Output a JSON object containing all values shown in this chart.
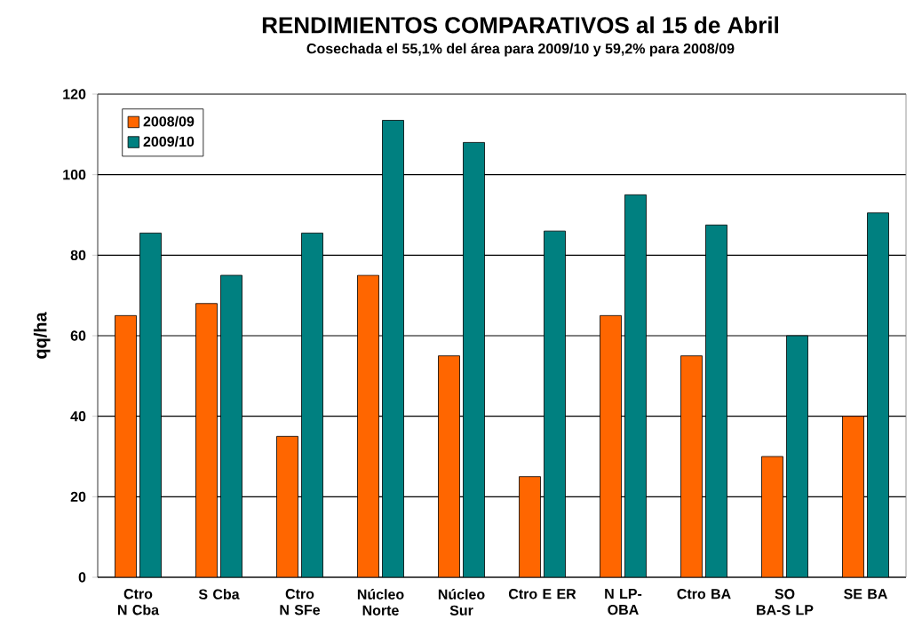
{
  "chart_data": {
    "type": "bar",
    "title": "RENDIMIENTOS COMPARATIVOS al 15 de Abril",
    "subtitle": "Cosechada el 55,1% del área para 2009/10 y 59,2% para 2008/09",
    "ylabel": "qq/ha",
    "categories": [
      "Ctro N Cba",
      "S Cba",
      "Ctro N SFe",
      "Núcleo Norte",
      "Núcleo Sur",
      "Ctro E ER",
      "N LP- OBA",
      "Ctro BA",
      "SO BA-S LP",
      "SE BA"
    ],
    "series": [
      {
        "name": "2008/09",
        "color": "#ff6600",
        "values": [
          65,
          68,
          35,
          75,
          55,
          25,
          65,
          55,
          30,
          40
        ]
      },
      {
        "name": "2009/10",
        "color": "#008080",
        "values": [
          85.5,
          75,
          85.5,
          113.5,
          108,
          86,
          95,
          87.5,
          60,
          90.5
        ]
      }
    ],
    "ylim": [
      0,
      120
    ],
    "yticks": [
      0,
      20,
      40,
      60,
      80,
      100,
      120
    ],
    "grid": "y",
    "legend": "top left"
  }
}
